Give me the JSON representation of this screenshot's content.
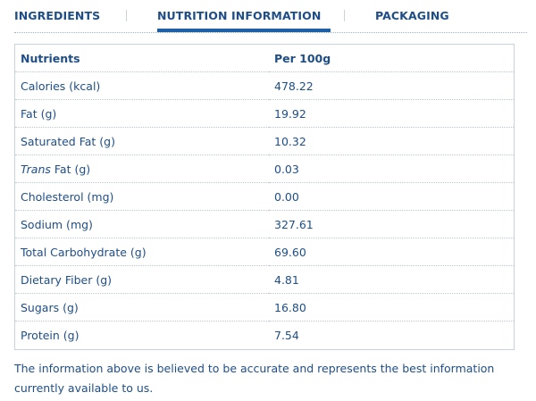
{
  "tabs": [
    {
      "label": "INGREDIENTS",
      "active": false
    },
    {
      "label": "NUTRITION INFORMATION",
      "active": true
    },
    {
      "label": "PACKAGING",
      "active": false
    }
  ],
  "table": {
    "headers": [
      "Nutrients",
      "Per 100g"
    ],
    "rows": [
      {
        "nutrient": "Calories (kcal)",
        "value": "478.22"
      },
      {
        "nutrient": "Fat (g)",
        "value": "19.92"
      },
      {
        "nutrient": "Saturated Fat (g)",
        "value": "10.32"
      },
      {
        "nutrient_italic": "Trans",
        "nutrient_rest": " Fat (g)",
        "value": "0.03"
      },
      {
        "nutrient": "Cholesterol (mg)",
        "value": "0.00"
      },
      {
        "nutrient": "Sodium (mg)",
        "value": "327.61"
      },
      {
        "nutrient": "Total Carbohydrate (g)",
        "value": "69.60"
      },
      {
        "nutrient": "Dietary Fiber (g)",
        "value": "4.81"
      },
      {
        "nutrient": "Sugars (g)",
        "value": "16.80"
      },
      {
        "nutrient": "Protein (g)",
        "value": "7.54"
      }
    ]
  },
  "footnote": "The information above is believed to be accurate and represents the best information currently available to us.",
  "colors": {
    "text": "#1f4e86",
    "accent": "#1f5fa6",
    "border": "#c9d3dd"
  }
}
